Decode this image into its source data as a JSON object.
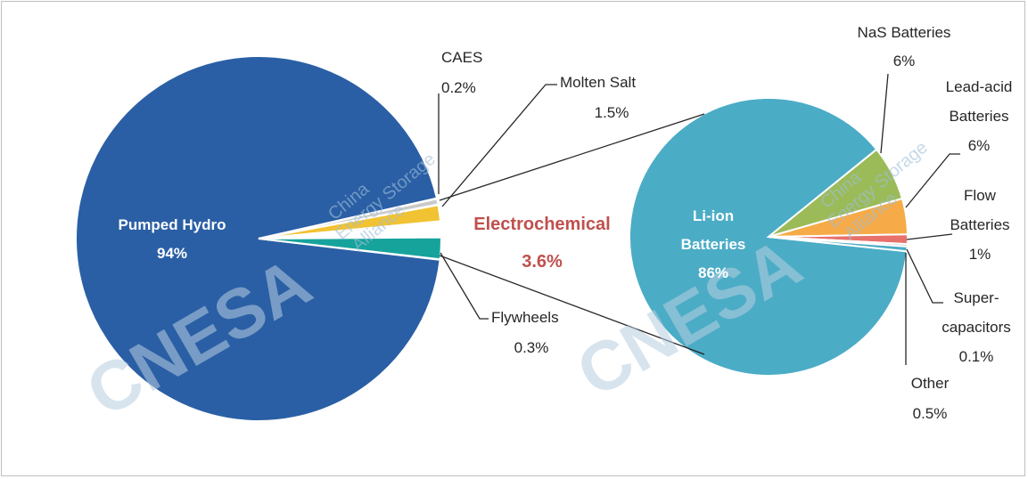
{
  "chart_data": [
    {
      "type": "pie",
      "slices": [
        {
          "label": "Pumped Hydro",
          "value_label": "94%",
          "value": 94,
          "color": "#2a5fa5"
        },
        {
          "label": "CAES",
          "value_label": "0.2%",
          "value": 0.2,
          "color": "#c9c9c9"
        },
        {
          "label": "Molten Salt",
          "value_label": "1.5%",
          "value": 1.5,
          "color": "#f1c232"
        },
        {
          "label": "Electrochemical",
          "value_label": "3.6%",
          "value": 3.6,
          "color": "#ffffff"
        },
        {
          "label": "Flywheels",
          "value_label": "0.3%",
          "value": 0.3,
          "color": "#16a39c"
        }
      ]
    },
    {
      "type": "pie",
      "slices": [
        {
          "label": "Li-ion Batteries",
          "value_label": "86%",
          "value": 86,
          "color": "#4bacc6"
        },
        {
          "label": "NaS Batteries",
          "value_label": "6%",
          "value": 6,
          "color": "#9bbb59"
        },
        {
          "label": "Lead-acid Batteries",
          "value_label": "6%",
          "value": 6,
          "color": "#f6ab48"
        },
        {
          "label": "Flow Batteries",
          "value_label": "1%",
          "value": 1,
          "color": "#e8716b"
        },
        {
          "label": "Super-capacitors",
          "value_label": "0.1%",
          "value": 0.1,
          "color": "#bfbfbf"
        },
        {
          "label": "Other",
          "value_label": "0.5%",
          "value": 0.5,
          "color": "#4bacc6"
        }
      ]
    }
  ],
  "labels": {
    "pumped_hydro": "Pumped Hydro",
    "pumped_hydro_value": "94%",
    "caes": "CAES",
    "caes_value": "0.2%",
    "molten_salt": "Molten Salt",
    "molten_salt_value": "1.5%",
    "electrochemical": "Electrochemical",
    "electrochemical_value": "3.6%",
    "flywheels": "Flywheels",
    "flywheels_value": "0.3%",
    "liion_line1": "Li-ion",
    "liion_line2": "Batteries",
    "liion_value": "86%",
    "nas": "NaS Batteries",
    "nas_value": "6%",
    "leadacid_line1": "Lead-acid",
    "leadacid_line2": "Batteries",
    "leadacid_value": "6%",
    "flow_line1": "Flow",
    "flow_line2": "Batteries",
    "flow_value": "1%",
    "super_line1": "Super-",
    "super_line2": "capacitors",
    "super_value": "0.1%",
    "other": "Other",
    "other_value": "0.5%"
  },
  "watermark": {
    "logo": "CNESA",
    "line1": "China",
    "line2": "Energy Storage",
    "line3": "Alliance"
  }
}
